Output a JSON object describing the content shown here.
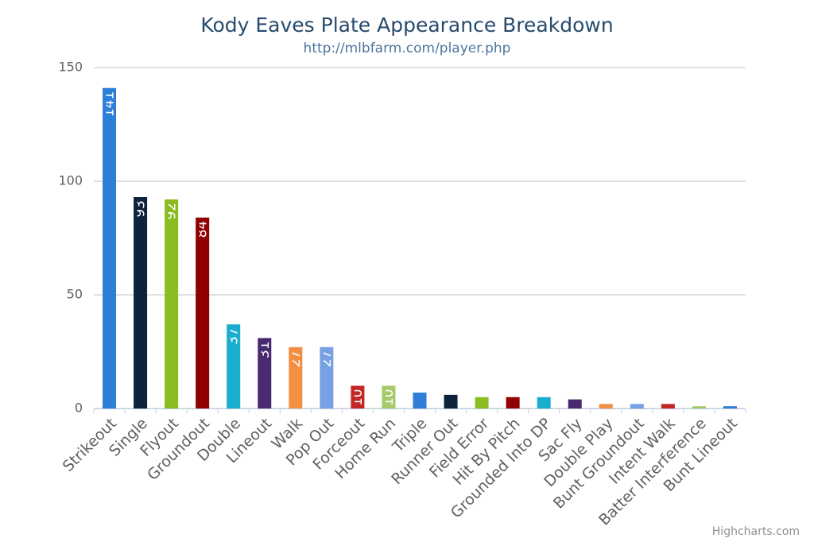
{
  "chart_data": {
    "type": "bar",
    "title": "Kody Eaves Plate Appearance Breakdown",
    "subtitle": "http://mlbfarm.com/player.php",
    "credits": "Highcharts.com",
    "categories": [
      "Strikeout",
      "Single",
      "Flyout",
      "Groundout",
      "Double",
      "Lineout",
      "Walk",
      "Pop Out",
      "Forceout",
      "Home Run",
      "Triple",
      "Runner Out",
      "Field Error",
      "Hit By Pitch",
      "Grounded Into DP",
      "Sac Fly",
      "Double Play",
      "Bunt Groundout",
      "Intent Walk",
      "Batter Interference",
      "Bunt Lineout"
    ],
    "values": [
      141,
      93,
      92,
      84,
      37,
      31,
      27,
      27,
      10,
      10,
      7,
      6,
      5,
      5,
      5,
      4,
      2,
      2,
      2,
      1,
      1
    ],
    "colors": [
      "#2f7ed8",
      "#0d233a",
      "#8bbc21",
      "#910000",
      "#1aadce",
      "#492970",
      "#f28f43",
      "#77a1e5",
      "#c42525",
      "#a6c96a",
      "#2f7ed8",
      "#0d233a",
      "#8bbc21",
      "#910000",
      "#1aadce",
      "#492970",
      "#f28f43",
      "#77a1e5",
      "#c42525",
      "#a6c96a",
      "#2f7ed8"
    ],
    "ylim": [
      0,
      150
    ],
    "yticks": [
      0,
      50,
      100,
      150
    ],
    "grid": true
  }
}
